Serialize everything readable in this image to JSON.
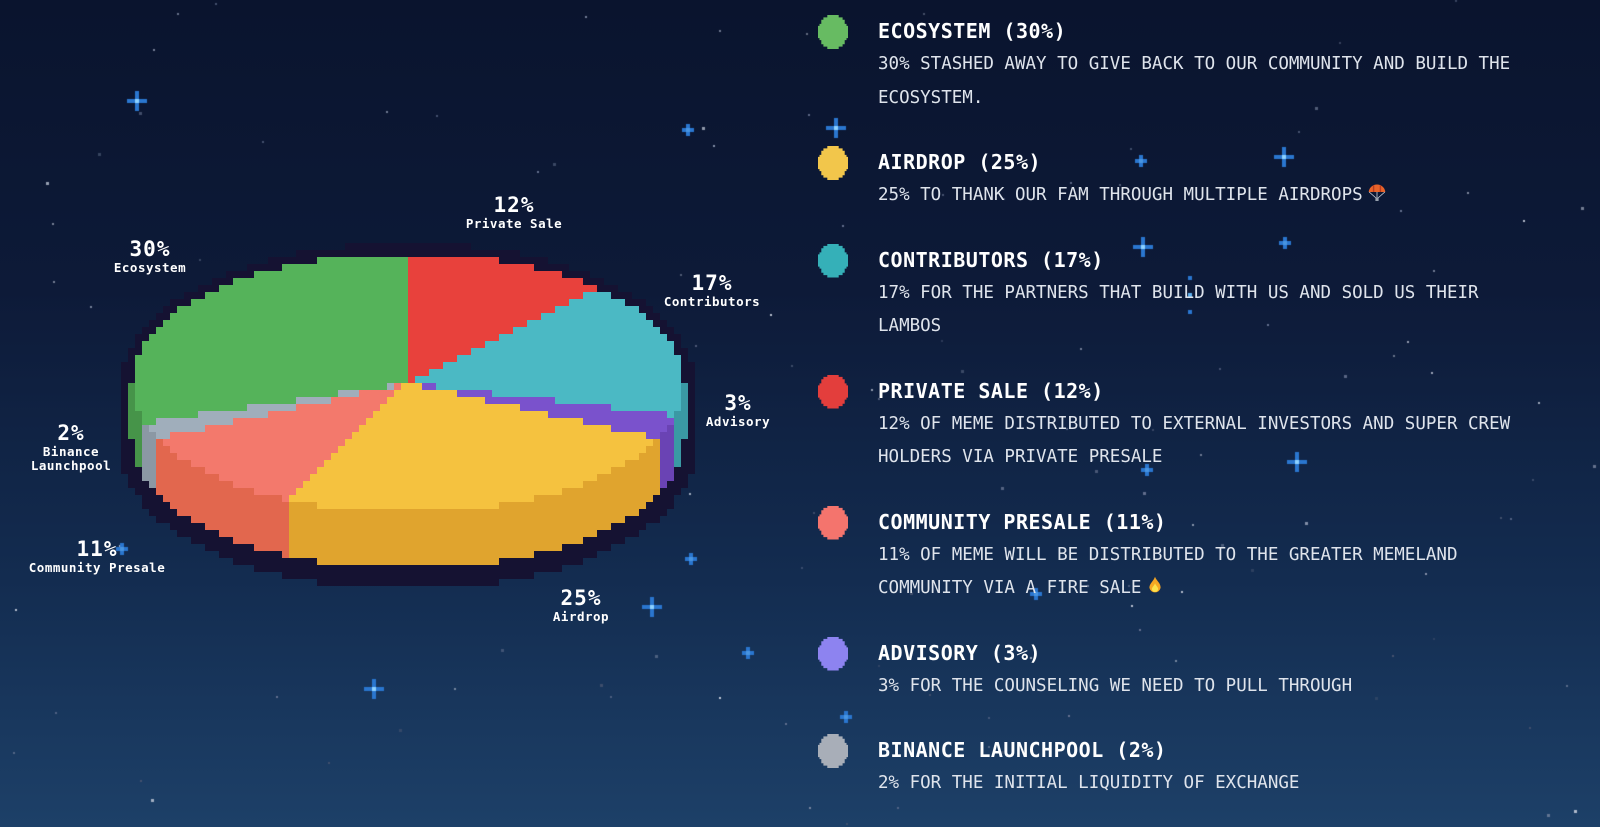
{
  "chart_data": {
    "type": "pie",
    "style": "pixel-art-3d",
    "unit": "%",
    "outline_color": "#151232",
    "slices": [
      {
        "id": "private_sale",
        "label": "Private Sale",
        "value": 12,
        "pct_text": "12%",
        "color": "#e8413c",
        "depth_color": "#c43430"
      },
      {
        "id": "contributors",
        "label": "Contributors",
        "value": 17,
        "pct_text": "17%",
        "color": "#4bb9c4",
        "depth_color": "#3a99a4"
      },
      {
        "id": "advisory",
        "label": "Advisory",
        "value": 3,
        "pct_text": "3%",
        "color": "#7a52cc",
        "depth_color": "#6a43b4"
      },
      {
        "id": "airdrop",
        "label": "Airdrop",
        "value": 25,
        "pct_text": "25%",
        "color": "#f5c23f",
        "depth_color": "#e0a42e"
      },
      {
        "id": "community_presale",
        "label": "Community Presale",
        "value": 11,
        "pct_text": "11%",
        "color": "#f3796c",
        "depth_color": "#e2674e"
      },
      {
        "id": "binance_launchpool",
        "label": "Binance Launchpool",
        "value": 2,
        "pct_text": "2%",
        "color": "#a0aebb",
        "depth_color": "#8b98a4"
      },
      {
        "id": "ecosystem",
        "label": "Ecosystem",
        "value": 30,
        "pct_text": "30%",
        "color": "#55b35a",
        "depth_color": "#469449"
      }
    ]
  },
  "legend": {
    "items": [
      {
        "id": "ecosystem",
        "title": "ECOSYSTEM (30%)",
        "color": "#67bb62",
        "description": "30% STASHED AWAY TO GIVE BACK TO OUR COMMUNITY AND BUILD THE ECOSYSTEM."
      },
      {
        "id": "airdrop",
        "title": "AIRDROP (25%)",
        "color": "#f2c64b",
        "description": "25% TO THANK OUR FAM THROUGH MULTIPLE AIRDROPS",
        "emoji": "🪂",
        "emoji_name": "parachute-emoji"
      },
      {
        "id": "contributors",
        "title": "CONTRIBUTORS (17%)",
        "color": "#35b0b8",
        "description": "17% FOR THE PARTNERS THAT BUILD WITH US AND SOLD US THEIR LAMBOS"
      },
      {
        "id": "private_sale",
        "title": "PRIVATE SALE (12%)",
        "color": "#e33e3c",
        "description": "12% OF MEME DISTRIBUTED TO EXTERNAL INVESTORS AND SUPER CREW HOLDERS VIA PRIVATE PRESALE"
      },
      {
        "id": "community_presale",
        "title": "COMMUNITY PRESALE (11%)",
        "color": "#f4746d",
        "description": "11% OF MEME WILL BE DISTRIBUTED TO THE GREATER MEMELAND COMMUNITY VIA A FIRE SALE",
        "emoji": "🔥",
        "emoji_name": "fire-emoji"
      },
      {
        "id": "advisory",
        "title": "ADVISORY (3%)",
        "color": "#8d83f0",
        "description": "3% FOR THE COUNSELING WE NEED TO PULL THROUGH"
      },
      {
        "id": "binance_launchpool",
        "title": "BINANCE LAUNCHPOOL (2%)",
        "color": "#a8aeb8",
        "description": "2% FOR THE INITIAL LIQUIDITY OF EXCHANGE"
      }
    ]
  }
}
